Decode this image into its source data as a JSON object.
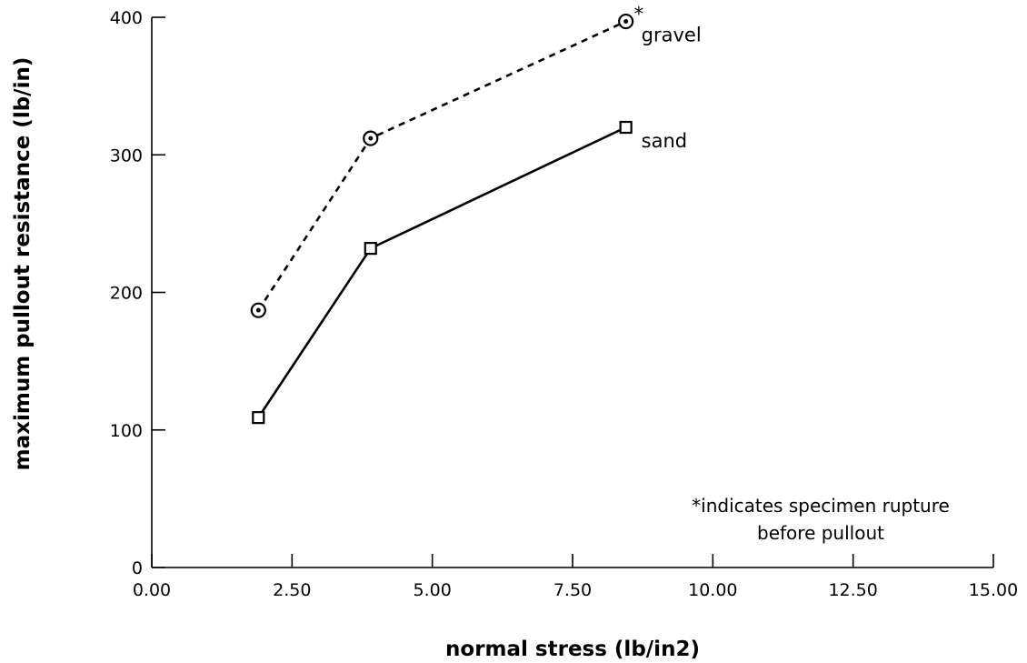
{
  "chart_data": {
    "type": "line",
    "xlabel": "normal stress (lb/in2)",
    "ylabel": "maximum pullout resistance (lb/in)",
    "xlim": [
      0,
      15
    ],
    "ylim": [
      0,
      400
    ],
    "x_ticks": [
      0,
      2.5,
      5,
      7.5,
      10,
      12.5,
      15
    ],
    "x_tick_labels": [
      "0.00",
      "2.50",
      "5.00",
      "7.50",
      "10.00",
      "12.50",
      "15.00"
    ],
    "y_ticks": [
      0,
      100,
      200,
      300,
      400
    ],
    "y_tick_labels": [
      "0",
      "100",
      "200",
      "300",
      "400"
    ],
    "grid": false,
    "series": [
      {
        "name": "gravel",
        "line_style": "dashed",
        "marker": "circle-dot",
        "x": [
          1.9,
          3.9,
          8.45
        ],
        "y": [
          187,
          312,
          397
        ],
        "annotation_marker": "*"
      },
      {
        "name": "sand",
        "line_style": "solid",
        "marker": "square",
        "x": [
          1.9,
          3.9,
          8.45
        ],
        "y": [
          109,
          232,
          320
        ]
      }
    ],
    "notes": [
      "*indicates specimen rupture",
      "before pullout"
    ]
  }
}
